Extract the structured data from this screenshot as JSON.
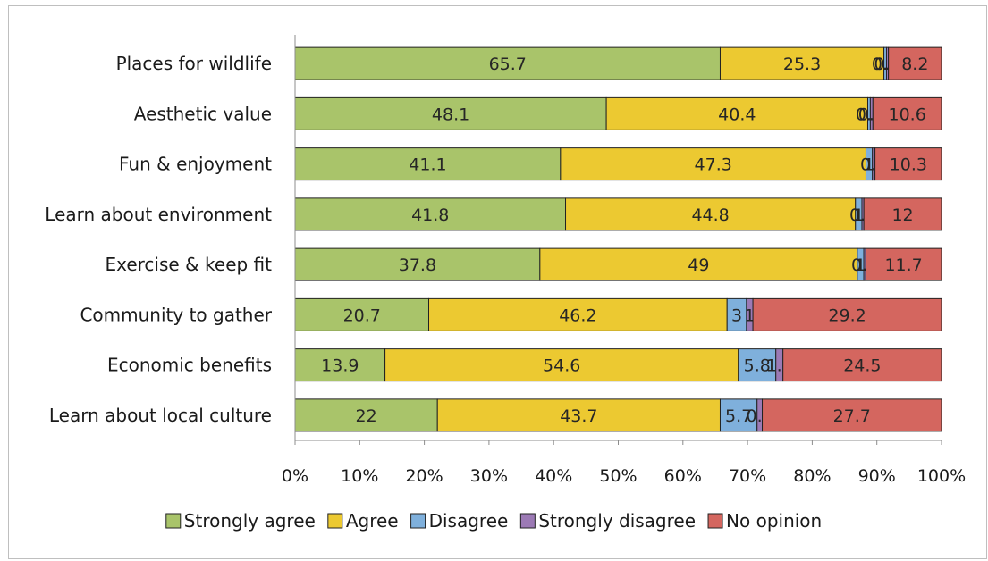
{
  "chart_data": {
    "type": "bar",
    "orientation": "horizontal",
    "stacked": "percent",
    "categories": [
      "Places for wildlife",
      "Aesthetic value",
      "Fun & enjoyment",
      "Learn about environment",
      "Exercise & keep fit",
      "Community to gather",
      "Economic benefits",
      "Learn about local culture"
    ],
    "series": [
      {
        "name": "Strongly agree",
        "color": "#a9c46a",
        "values": [
          65.7,
          48.1,
          41.1,
          41.8,
          37.8,
          20.7,
          13.9,
          22
        ],
        "labels": [
          "65.7",
          "48.1",
          "41.1",
          "41.8",
          "37.8",
          "20.7",
          "13.9",
          "22"
        ]
      },
      {
        "name": "Agree",
        "color": "#ecc931",
        "values": [
          25.3,
          40.4,
          47.3,
          44.8,
          49,
          46.2,
          54.6,
          43.7
        ],
        "labels": [
          "25.3",
          "40.4",
          "47.3",
          "44.8",
          "49",
          "46.2",
          "54.6",
          "43.7"
        ]
      },
      {
        "name": "Disagree",
        "color": "#7fb0dc",
        "values": [
          0.4,
          0.4,
          1,
          1,
          1,
          3,
          5.8,
          5.7
        ],
        "labels": [
          "0.4",
          "0.4",
          "1",
          "1",
          "1",
          "3",
          "5.8",
          "5.7"
        ]
      },
      {
        "name": "Strongly disagree",
        "color": "#9c7ab5",
        "values": [
          0.3,
          0.4,
          0.4,
          0.3,
          0.3,
          1,
          1.1,
          0.8
        ],
        "labels": [
          "0.3",
          "0.4",
          "0.4",
          "0.3",
          "0.3",
          "1",
          "1.1",
          "0.8"
        ]
      },
      {
        "name": "No opinion",
        "color": "#d4665f",
        "values": [
          8.2,
          10.6,
          10.3,
          12,
          11.7,
          29.2,
          24.5,
          27.7
        ],
        "labels": [
          "8.2",
          "10.6",
          "10.3",
          "12",
          "11.7",
          "29.2",
          "24.5",
          "27.7"
        ]
      }
    ],
    "xlim": [
      0,
      100
    ],
    "xticks": [
      "0%",
      "10%",
      "20%",
      "30%",
      "40%",
      "50%",
      "60%",
      "70%",
      "80%",
      "90%",
      "100%"
    ],
    "grid": false,
    "legend": "bottom",
    "title": "",
    "xlabel": "",
    "ylabel": ""
  }
}
